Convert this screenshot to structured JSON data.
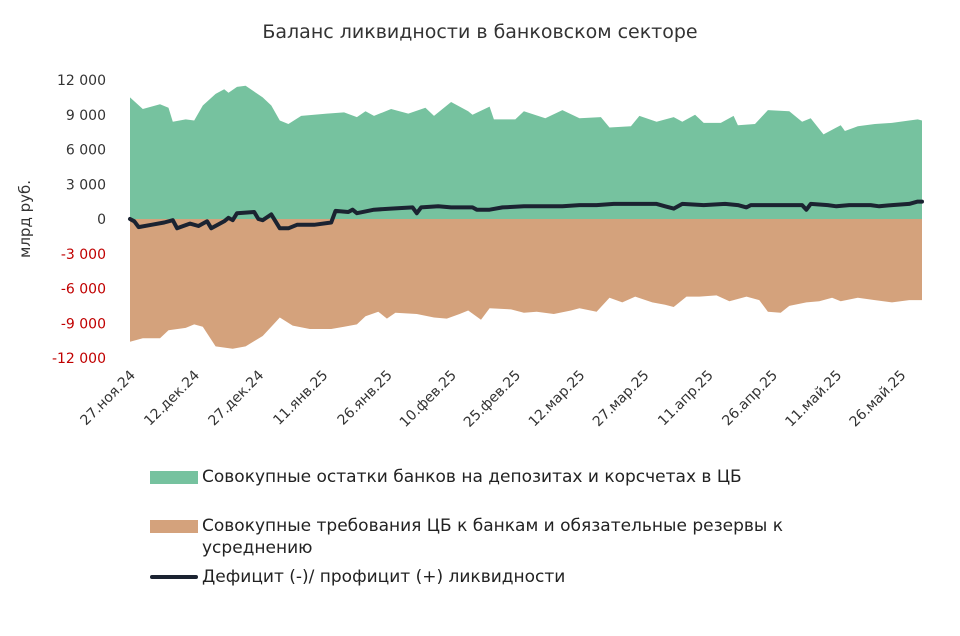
{
  "chart_data": {
    "type": "area",
    "title": "Баланс ликвидности в банковском секторе",
    "ylabel": "млрд руб.",
    "ylim": [
      -12000,
      12000
    ],
    "yticks": [
      12000,
      9000,
      6000,
      3000,
      0,
      -3000,
      -6000,
      -9000,
      -12000
    ],
    "ytick_labels": [
      "12 000",
      "9 000",
      "6 000",
      "3 000",
      "0",
      "-3 000",
      "-6 000",
      "-9 000",
      "-12 000"
    ],
    "x_range": [
      "2024-11-27",
      "2025-05-31"
    ],
    "x_tick_dates": [
      "2024-11-27",
      "2024-12-12",
      "2024-12-27",
      "2025-01-11",
      "2025-01-26",
      "2025-02-10",
      "2025-02-25",
      "2025-03-12",
      "2025-03-27",
      "2025-04-11",
      "2025-04-26",
      "2025-05-11",
      "2025-05-26"
    ],
    "x_tick_labels": [
      "27.ноя.24",
      "12.дек.24",
      "27.дек.24",
      "11.янв.25",
      "26.янв.25",
      "10.фев.25",
      "25.фев.25",
      "12.мар.25",
      "27.мар.25",
      "11.апр.25",
      "26.апр.25",
      "11.май.25",
      "26.май.25"
    ],
    "grid": false,
    "legend_position": "bottom",
    "series": [
      {
        "name": "Совокупные остатки банков на депозитах и корсчетах в ЦБ",
        "kind": "area",
        "color": "#76c29f",
        "points": [
          [
            "2024-11-27",
            10500
          ],
          [
            "2024-11-30",
            9500
          ],
          [
            "2024-12-04",
            9900
          ],
          [
            "2024-12-06",
            9600
          ],
          [
            "2024-12-07",
            8400
          ],
          [
            "2024-12-10",
            8600
          ],
          [
            "2024-12-12",
            8500
          ],
          [
            "2024-12-14",
            9800
          ],
          [
            "2024-12-17",
            10800
          ],
          [
            "2024-12-19",
            11200
          ],
          [
            "2024-12-20",
            10900
          ],
          [
            "2024-12-22",
            11400
          ],
          [
            "2024-12-24",
            11500
          ],
          [
            "2024-12-28",
            10500
          ],
          [
            "2024-12-30",
            9800
          ],
          [
            "2025-01-01",
            8500
          ],
          [
            "2025-01-03",
            8200
          ],
          [
            "2025-01-06",
            8900
          ],
          [
            "2025-01-12",
            9100
          ],
          [
            "2025-01-16",
            9200
          ],
          [
            "2025-01-19",
            8800
          ],
          [
            "2025-01-21",
            9300
          ],
          [
            "2025-01-23",
            8900
          ],
          [
            "2025-01-27",
            9500
          ],
          [
            "2025-01-31",
            9100
          ],
          [
            "2025-02-04",
            9600
          ],
          [
            "2025-02-06",
            8900
          ],
          [
            "2025-02-09",
            9800
          ],
          [
            "2025-02-10",
            10100
          ],
          [
            "2025-02-14",
            9300
          ],
          [
            "2025-02-15",
            9000
          ],
          [
            "2025-02-19",
            9700
          ],
          [
            "2025-02-20",
            8600
          ],
          [
            "2025-02-25",
            8600
          ],
          [
            "2025-02-27",
            9300
          ],
          [
            "2025-03-04",
            8700
          ],
          [
            "2025-03-08",
            9400
          ],
          [
            "2025-03-12",
            8700
          ],
          [
            "2025-03-17",
            8800
          ],
          [
            "2025-03-19",
            7900
          ],
          [
            "2025-03-24",
            8000
          ],
          [
            "2025-03-26",
            8900
          ],
          [
            "2025-03-30",
            8400
          ],
          [
            "2025-04-03",
            8800
          ],
          [
            "2025-04-05",
            8400
          ],
          [
            "2025-04-08",
            9000
          ],
          [
            "2025-04-10",
            8300
          ],
          [
            "2025-04-14",
            8300
          ],
          [
            "2025-04-17",
            8900
          ],
          [
            "2025-04-18",
            8100
          ],
          [
            "2025-04-22",
            8200
          ],
          [
            "2025-04-25",
            9400
          ],
          [
            "2025-04-30",
            9300
          ],
          [
            "2025-05-03",
            8400
          ],
          [
            "2025-05-05",
            8700
          ],
          [
            "2025-05-08",
            7300
          ],
          [
            "2025-05-12",
            8100
          ],
          [
            "2025-05-13",
            7600
          ],
          [
            "2025-05-16",
            8000
          ],
          [
            "2025-05-20",
            8200
          ],
          [
            "2025-05-24",
            8300
          ],
          [
            "2025-05-28",
            8500
          ],
          [
            "2025-05-30",
            8600
          ],
          [
            "2025-05-31",
            8500
          ]
        ]
      },
      {
        "name": "Совокупные требования ЦБ к банкам и обязательные резервы к усреднению",
        "kind": "area",
        "color": "#d4a27c",
        "points": [
          [
            "2024-11-27",
            -10600
          ],
          [
            "2024-11-30",
            -10300
          ],
          [
            "2024-12-04",
            -10300
          ],
          [
            "2024-12-06",
            -9600
          ],
          [
            "2024-12-10",
            -9400
          ],
          [
            "2024-12-12",
            -9100
          ],
          [
            "2024-12-14",
            -9300
          ],
          [
            "2024-12-17",
            -11000
          ],
          [
            "2024-12-21",
            -11200
          ],
          [
            "2024-12-24",
            -11000
          ],
          [
            "2024-12-28",
            -10100
          ],
          [
            "2024-12-30",
            -9300
          ],
          [
            "2025-01-01",
            -8500
          ],
          [
            "2025-01-04",
            -9200
          ],
          [
            "2025-01-08",
            -9500
          ],
          [
            "2025-01-13",
            -9500
          ],
          [
            "2025-01-16",
            -9300
          ],
          [
            "2025-01-19",
            -9100
          ],
          [
            "2025-01-21",
            -8400
          ],
          [
            "2025-01-24",
            -8000
          ],
          [
            "2025-01-26",
            -8600
          ],
          [
            "2025-01-28",
            -8100
          ],
          [
            "2025-02-02",
            -8200
          ],
          [
            "2025-02-06",
            -8500
          ],
          [
            "2025-02-09",
            -8600
          ],
          [
            "2025-02-12",
            -8200
          ],
          [
            "2025-02-14",
            -7900
          ],
          [
            "2025-02-17",
            -8700
          ],
          [
            "2025-02-19",
            -7700
          ],
          [
            "2025-02-24",
            -7800
          ],
          [
            "2025-02-27",
            -8100
          ],
          [
            "2025-03-02",
            -8000
          ],
          [
            "2025-03-06",
            -8200
          ],
          [
            "2025-03-10",
            -7900
          ],
          [
            "2025-03-12",
            -7700
          ],
          [
            "2025-03-16",
            -8000
          ],
          [
            "2025-03-19",
            -6800
          ],
          [
            "2025-03-22",
            -7200
          ],
          [
            "2025-03-25",
            -6700
          ],
          [
            "2025-03-29",
            -7200
          ],
          [
            "2025-04-01",
            -7400
          ],
          [
            "2025-04-03",
            -7600
          ],
          [
            "2025-04-06",
            -6700
          ],
          [
            "2025-04-09",
            -6700
          ],
          [
            "2025-04-13",
            -6600
          ],
          [
            "2025-04-16",
            -7100
          ],
          [
            "2025-04-20",
            -6700
          ],
          [
            "2025-04-23",
            -7000
          ],
          [
            "2025-04-25",
            -8000
          ],
          [
            "2025-04-28",
            -8100
          ],
          [
            "2025-04-30",
            -7500
          ],
          [
            "2025-05-04",
            -7200
          ],
          [
            "2025-05-07",
            -7100
          ],
          [
            "2025-05-10",
            -6800
          ],
          [
            "2025-05-12",
            -7100
          ],
          [
            "2025-05-16",
            -6800
          ],
          [
            "2025-05-20",
            -7000
          ],
          [
            "2025-05-24",
            -7200
          ],
          [
            "2025-05-28",
            -7000
          ],
          [
            "2025-05-31",
            -7000
          ]
        ]
      },
      {
        "name": "Дефицит (-)/ профицит (+) ликвидности",
        "kind": "line",
        "color": "#1b2331",
        "points": [
          [
            "2024-11-27",
            0
          ],
          [
            "2024-11-28",
            -200
          ],
          [
            "2024-11-29",
            -700
          ],
          [
            "2024-12-02",
            -500
          ],
          [
            "2024-12-05",
            -300
          ],
          [
            "2024-12-07",
            -100
          ],
          [
            "2024-12-08",
            -800
          ],
          [
            "2024-12-11",
            -400
          ],
          [
            "2024-12-13",
            -600
          ],
          [
            "2024-12-15",
            -200
          ],
          [
            "2024-12-16",
            -800
          ],
          [
            "2024-12-19",
            -200
          ],
          [
            "2024-12-20",
            100
          ],
          [
            "2024-12-21",
            -100
          ],
          [
            "2024-12-22",
            500
          ],
          [
            "2024-12-26",
            600
          ],
          [
            "2024-12-27",
            0
          ],
          [
            "2024-12-28",
            -100
          ],
          [
            "2024-12-30",
            400
          ],
          [
            "2025-01-01",
            -800
          ],
          [
            "2025-01-03",
            -800
          ],
          [
            "2025-01-05",
            -500
          ],
          [
            "2025-01-09",
            -500
          ],
          [
            "2025-01-13",
            -300
          ],
          [
            "2025-01-14",
            700
          ],
          [
            "2025-01-17",
            600
          ],
          [
            "2025-01-18",
            800
          ],
          [
            "2025-01-19",
            500
          ],
          [
            "2025-01-23",
            800
          ],
          [
            "2025-01-27",
            900
          ],
          [
            "2025-02-01",
            1000
          ],
          [
            "2025-02-02",
            500
          ],
          [
            "2025-02-03",
            1000
          ],
          [
            "2025-02-07",
            1100
          ],
          [
            "2025-02-10",
            1000
          ],
          [
            "2025-02-15",
            1000
          ],
          [
            "2025-02-16",
            800
          ],
          [
            "2025-02-19",
            800
          ],
          [
            "2025-02-22",
            1000
          ],
          [
            "2025-02-27",
            1100
          ],
          [
            "2025-03-04",
            1100
          ],
          [
            "2025-03-08",
            1100
          ],
          [
            "2025-03-12",
            1200
          ],
          [
            "2025-03-16",
            1200
          ],
          [
            "2025-03-20",
            1300
          ],
          [
            "2025-03-26",
            1300
          ],
          [
            "2025-03-30",
            1300
          ],
          [
            "2025-04-01",
            1100
          ],
          [
            "2025-04-03",
            900
          ],
          [
            "2025-04-05",
            1300
          ],
          [
            "2025-04-10",
            1200
          ],
          [
            "2025-04-15",
            1300
          ],
          [
            "2025-04-18",
            1200
          ],
          [
            "2025-04-20",
            1000
          ],
          [
            "2025-04-21",
            1200
          ],
          [
            "2025-04-29",
            1200
          ],
          [
            "2025-05-03",
            1200
          ],
          [
            "2025-05-04",
            800
          ],
          [
            "2025-05-05",
            1300
          ],
          [
            "2025-05-09",
            1200
          ],
          [
            "2025-05-11",
            1100
          ],
          [
            "2025-05-14",
            1200
          ],
          [
            "2025-05-19",
            1200
          ],
          [
            "2025-05-21",
            1100
          ],
          [
            "2025-05-24",
            1200
          ],
          [
            "2025-05-28",
            1300
          ],
          [
            "2025-05-30",
            1500
          ],
          [
            "2025-05-31",
            1500
          ]
        ]
      }
    ]
  }
}
